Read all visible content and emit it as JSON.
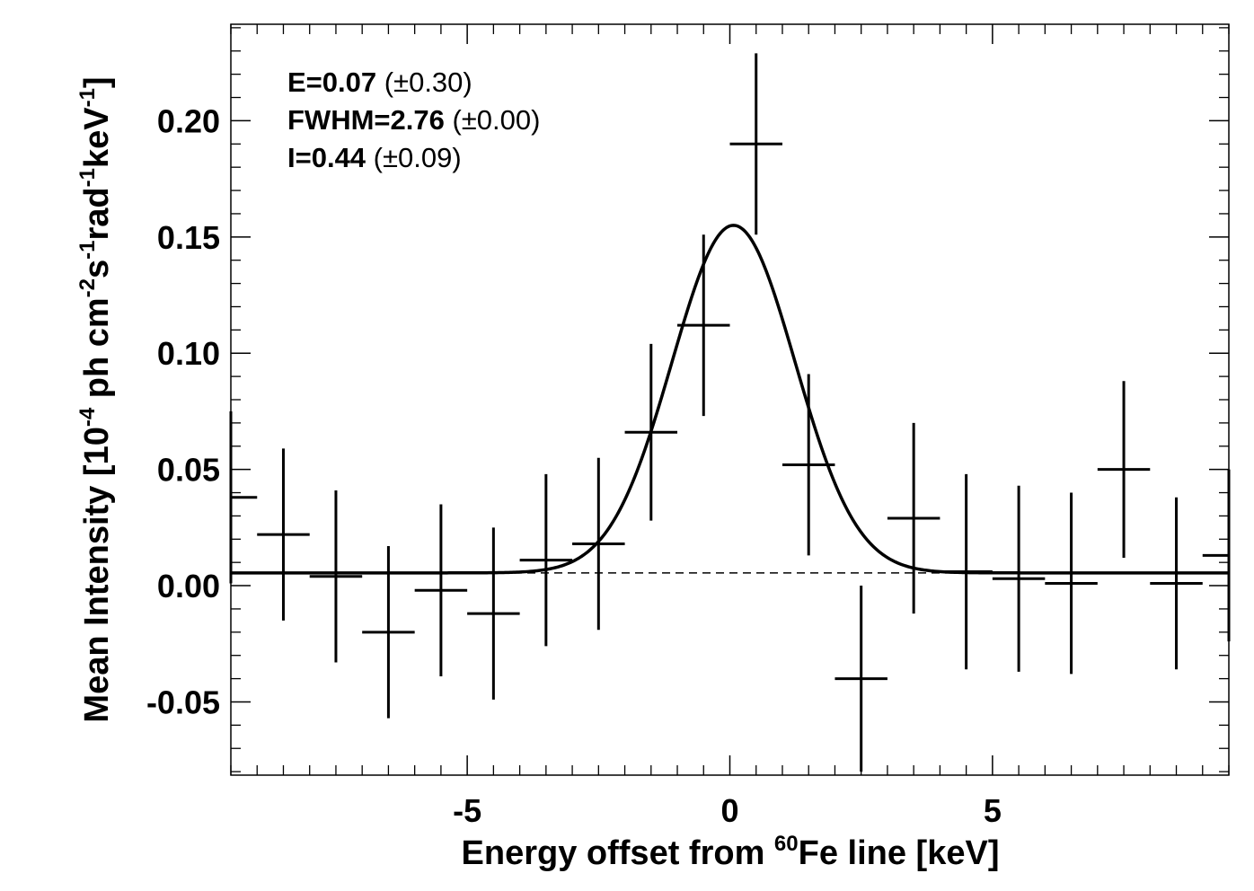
{
  "chart_data": {
    "type": "scatter",
    "xlabel": {
      "pre": "Energy offset from ",
      "sup": "60",
      "post": "Fe line [keV]"
    },
    "ylabel": {
      "parts": [
        {
          "t": "Mean Intensity [10",
          "sup": false
        },
        {
          "t": "-4",
          "sup": true
        },
        {
          "t": " ph cm",
          "sup": false
        },
        {
          "t": "-2",
          "sup": true
        },
        {
          "t": "s",
          "sup": false
        },
        {
          "t": "-1",
          "sup": true
        },
        {
          "t": "rad",
          "sup": false
        },
        {
          "t": "-1",
          "sup": true
        },
        {
          "t": "keV",
          "sup": false
        },
        {
          "t": "-1",
          "sup": true
        },
        {
          "t": "]",
          "sup": false
        }
      ]
    },
    "xlim": [
      -9.5,
      9.5
    ],
    "ylim": [
      -0.0815,
      0.2415
    ],
    "xticks": [
      {
        "value": -5,
        "label": "-5"
      },
      {
        "value": 0,
        "label": "0"
      },
      {
        "value": 5,
        "label": "5"
      }
    ],
    "yticks": [
      {
        "value": -0.05,
        "label": "-0.05"
      },
      {
        "value": 0.0,
        "label": "0.00"
      },
      {
        "value": 0.05,
        "label": "0.05"
      },
      {
        "value": 0.1,
        "label": "0.10"
      },
      {
        "value": 0.15,
        "label": "0.15"
      },
      {
        "value": 0.2,
        "label": "0.20"
      }
    ],
    "x_minor_step": 0.5,
    "y_minor_step": 0.01,
    "bin_half_width": 0.5,
    "data": [
      {
        "x": -9.5,
        "y": 0.038,
        "err": 0.037
      },
      {
        "x": -8.5,
        "y": 0.022,
        "err": 0.037
      },
      {
        "x": -7.5,
        "y": 0.004,
        "err": 0.037
      },
      {
        "x": -6.5,
        "y": -0.02,
        "err": 0.037
      },
      {
        "x": -5.5,
        "y": -0.002,
        "err": 0.037
      },
      {
        "x": -4.5,
        "y": -0.012,
        "err": 0.037
      },
      {
        "x": -3.5,
        "y": 0.011,
        "err": 0.037
      },
      {
        "x": -2.5,
        "y": 0.018,
        "err": 0.037
      },
      {
        "x": -1.5,
        "y": 0.066,
        "err": 0.038
      },
      {
        "x": -0.5,
        "y": 0.112,
        "err": 0.039
      },
      {
        "x": 0.5,
        "y": 0.19,
        "err": 0.039
      },
      {
        "x": 1.5,
        "y": 0.052,
        "err": 0.039
      },
      {
        "x": 2.5,
        "y": -0.04,
        "err": 0.04
      },
      {
        "x": 3.5,
        "y": 0.029,
        "err": 0.041
      },
      {
        "x": 4.5,
        "y": 0.006,
        "err": 0.042
      },
      {
        "x": 5.5,
        "y": 0.003,
        "err": 0.04
      },
      {
        "x": 6.5,
        "y": 0.001,
        "err": 0.039
      },
      {
        "x": 7.5,
        "y": 0.05,
        "err": 0.038
      },
      {
        "x": 8.5,
        "y": 0.001,
        "err": 0.037
      },
      {
        "x": 9.5,
        "y": 0.013,
        "err": 0.037
      }
    ],
    "fit": {
      "type": "gaussian",
      "center": 0.07,
      "fwhm": 2.76,
      "baseline": 0.0055,
      "amplitude": 0.1495
    },
    "baseline_dashed": 0.0055,
    "annotations": [
      {
        "bold": "E=0.07",
        "rest": " (±0.30)"
      },
      {
        "bold": "FWHM=2.76",
        "rest": " (±0.00)"
      },
      {
        "bold": "I=0.44",
        "rest": " (±0.09)"
      }
    ]
  }
}
